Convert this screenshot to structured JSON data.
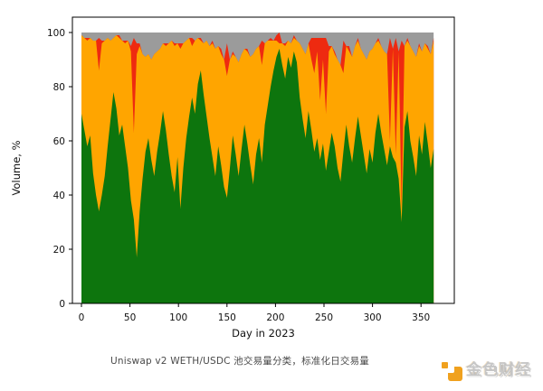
{
  "caption": {
    "text": "Uniswap v2 WETH/USDC 池交易量分类，标准化日交易量"
  },
  "watermark": {
    "text": "金色财经",
    "icon": "jinse-finance-logo",
    "icon_color": "#F0A11E",
    "text_color": "#c6c6c6"
  },
  "chart_data": {
    "type": "area",
    "stacked": true,
    "normalized": "each day sums to 100%",
    "title": "",
    "xlabel": "Day in 2023",
    "ylabel": "Volume, %",
    "x_ticks": [
      0,
      50,
      100,
      150,
      200,
      250,
      300,
      350
    ],
    "y_ticks": [
      0,
      20,
      40,
      60,
      80,
      100
    ],
    "xlim": [
      -8,
      385
    ],
    "ylim": [
      0,
      105.6
    ],
    "grid": false,
    "legend": "none",
    "colors": {
      "green": "#0d750d",
      "orange": "#ffa500",
      "red": "#ee2a10",
      "gray": "#9b9b9b"
    },
    "series_order_bottom_to_top": [
      "green",
      "orange",
      "red",
      "gray"
    ],
    "stacking_note": "green_top = green %; orange_top = green+orange cumulative %; red fills from orange_top to orange_top+red_extra; gray fills remainder up to 100",
    "days": [
      0,
      3,
      6,
      9,
      12,
      15,
      18,
      21,
      24,
      27,
      30,
      33,
      36,
      39,
      42,
      45,
      48,
      51,
      54,
      57,
      60,
      63,
      66,
      69,
      72,
      75,
      78,
      81,
      84,
      87,
      90,
      93,
      96,
      99,
      102,
      105,
      108,
      111,
      114,
      117,
      120,
      123,
      126,
      129,
      132,
      135,
      138,
      141,
      144,
      147,
      150,
      153,
      156,
      159,
      162,
      165,
      168,
      171,
      174,
      177,
      180,
      183,
      186,
      189,
      192,
      195,
      198,
      201,
      204,
      207,
      210,
      213,
      216,
      219,
      222,
      225,
      228,
      231,
      234,
      237,
      240,
      243,
      246,
      249,
      252,
      255,
      258,
      261,
      264,
      267,
      270,
      273,
      276,
      279,
      282,
      285,
      288,
      291,
      294,
      297,
      300,
      303,
      306,
      309,
      312,
      315,
      318,
      321,
      324,
      327,
      330,
      333,
      336,
      339,
      342,
      345,
      348,
      351,
      354,
      357,
      360,
      363
    ],
    "green_top": [
      70,
      64,
      58,
      62,
      48,
      40,
      34,
      40,
      47,
      58,
      68,
      78,
      72,
      62,
      66,
      58,
      50,
      38,
      31,
      17,
      34,
      46,
      56,
      61,
      53,
      47,
      56,
      63,
      71,
      64,
      55,
      47,
      41,
      54,
      35,
      50,
      61,
      69,
      76,
      70,
      81,
      86,
      77,
      69,
      61,
      54,
      47,
      58,
      51,
      43,
      39,
      50,
      62,
      55,
      47,
      57,
      66,
      59,
      51,
      44,
      55,
      61,
      52,
      66,
      73,
      80,
      86,
      91,
      94,
      88,
      83,
      91,
      87,
      93,
      89,
      76,
      68,
      61,
      71,
      64,
      56,
      61,
      53,
      59,
      49,
      56,
      63,
      58,
      50,
      45,
      56,
      66,
      58,
      52,
      61,
      69,
      62,
      55,
      48,
      57,
      52,
      63,
      70,
      63,
      57,
      51,
      58,
      54,
      52,
      46,
      30,
      65,
      71,
      60,
      54,
      47,
      62,
      55,
      67,
      59,
      50,
      57
    ],
    "orange_top": [
      99,
      98,
      97,
      98,
      97,
      97,
      86,
      96,
      97,
      98,
      97,
      98,
      99,
      98,
      97,
      96,
      97,
      93,
      63,
      92,
      95,
      92,
      91,
      92,
      90,
      92,
      93,
      94,
      96,
      95,
      96,
      97,
      95,
      96,
      94,
      96,
      97,
      98,
      95,
      97,
      98,
      97,
      96,
      97,
      95,
      96,
      94,
      95,
      92,
      90,
      84,
      90,
      92,
      91,
      89,
      92,
      94,
      93,
      91,
      92,
      94,
      95,
      88,
      96,
      97,
      97,
      97,
      97,
      96,
      96,
      95,
      97,
      96,
      98,
      97,
      96,
      94,
      92,
      96,
      90,
      85,
      93,
      75,
      90,
      70,
      93,
      95,
      92,
      90,
      88,
      85,
      95,
      93,
      91,
      95,
      97,
      94,
      92,
      90,
      93,
      94,
      96,
      97,
      95,
      93,
      92,
      60,
      94,
      55,
      93,
      35,
      95,
      97,
      95,
      93,
      91,
      95,
      93,
      96,
      94,
      92,
      97
    ],
    "red_extra": [
      0,
      0,
      1,
      0,
      0,
      0,
      12,
      1,
      0,
      0,
      0,
      0,
      0,
      1,
      0,
      1,
      0,
      2,
      35,
      4,
      1,
      0,
      0,
      0,
      0,
      0,
      0,
      0,
      0,
      1,
      0,
      0,
      1,
      0,
      2,
      0,
      0,
      0,
      3,
      0,
      0,
      1,
      0,
      0,
      0,
      1,
      0,
      0,
      2,
      0,
      12,
      0,
      1,
      0,
      0,
      0,
      0,
      1,
      0,
      0,
      0,
      0,
      9,
      0,
      0,
      1,
      0,
      2,
      4,
      0,
      1,
      0,
      0,
      1,
      0,
      0,
      0,
      0,
      0,
      8,
      13,
      5,
      23,
      8,
      28,
      2,
      0,
      1,
      0,
      0,
      12,
      0,
      2,
      0,
      0,
      1,
      0,
      0,
      0,
      0,
      0,
      0,
      1,
      0,
      0,
      0,
      38,
      0,
      43,
      0,
      62,
      0,
      1,
      0,
      0,
      0,
      1,
      0,
      0,
      1,
      0,
      1
    ],
    "gray_fills_to": 100
  }
}
